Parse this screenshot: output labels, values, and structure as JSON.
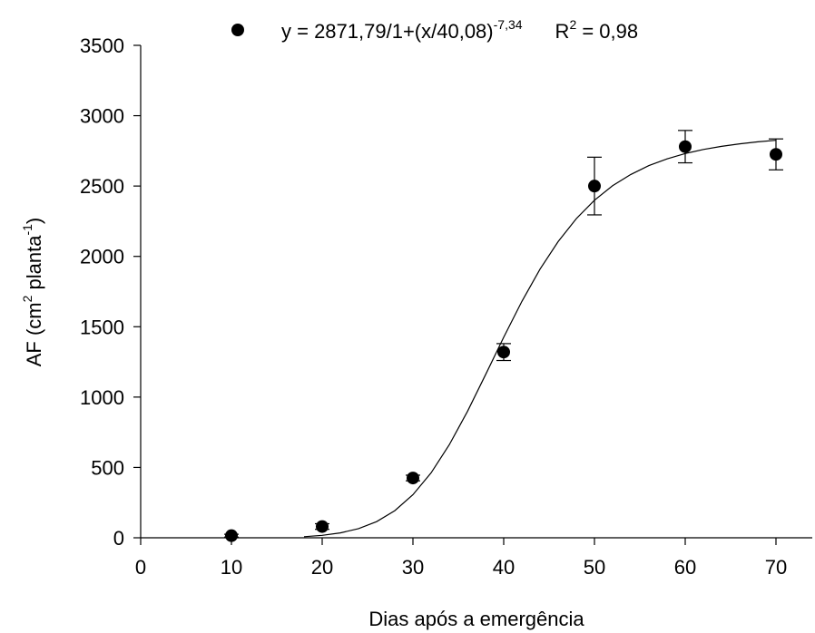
{
  "chart_data": {
    "type": "scatter",
    "x_label": "Dias após a emergência",
    "y_label": [
      "AF (cm",
      "2",
      " planta",
      "-1",
      ")"
    ],
    "equation": {
      "text": "y = 2871,79/1+(x/40,08)",
      "exponent": "-7,34"
    },
    "r_squared": {
      "text": "R",
      "exponent": "2",
      "rest": " = 0,98"
    },
    "series": [
      {
        "x": [
          10,
          20,
          30,
          40,
          50,
          60,
          70
        ],
        "values": [
          15,
          80,
          425,
          1320,
          2500,
          2780,
          2725
        ],
        "errors": [
          10,
          20,
          20,
          60,
          205,
          115,
          110
        ],
        "color": "#000000"
      }
    ],
    "fit_curve": {
      "x": [
        18,
        20,
        22,
        24,
        26,
        28,
        30,
        32,
        34,
        36,
        38,
        40,
        42,
        44,
        46,
        48,
        50,
        52,
        54,
        56,
        58,
        60,
        62,
        64,
        66,
        68,
        70
      ],
      "values": [
        8,
        17.4,
        34.7,
        65.1,
        115,
        192.6,
        306,
        461.5,
        660.9,
        897.4,
        1159,
        1425,
        1680,
        1909,
        2105,
        2268,
        2399,
        2502,
        2582,
        2645,
        2693,
        2731,
        2760,
        2782,
        2800,
        2814,
        2825
      ],
      "color": "#000000"
    },
    "xlim": [
      0,
      74
    ],
    "xticks": [
      0,
      10,
      20,
      30,
      40,
      50,
      60,
      70
    ],
    "ylim": [
      0,
      3500
    ],
    "yticks": [
      0,
      500,
      1000,
      1500,
      2000,
      2500,
      3000,
      3500
    ]
  }
}
